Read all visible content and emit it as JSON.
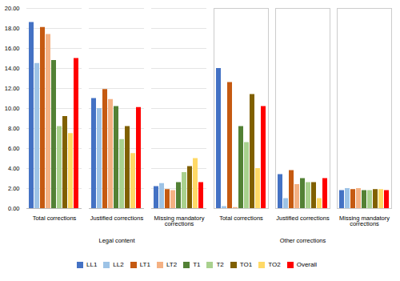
{
  "chart_data": [
    {
      "type": "bar",
      "xlabel": "Legal content",
      "categories": [
        "Total corrections",
        "Justified corrections",
        "Missing mandatory\ncorrections"
      ],
      "series": [
        {
          "name": "LL1",
          "color": "#4472C4",
          "values": [
            18.6,
            11.0,
            2.2
          ]
        },
        {
          "name": "LL2",
          "color": "#9DC3E6",
          "values": [
            14.5,
            10.0,
            2.5
          ]
        },
        {
          "name": "LT1",
          "color": "#C55A11",
          "values": [
            18.1,
            11.9,
            1.9
          ]
        },
        {
          "name": "LT2",
          "color": "#F4B183",
          "values": [
            17.4,
            10.9,
            1.8
          ]
        },
        {
          "name": "T1",
          "color": "#538135",
          "values": [
            14.8,
            10.2,
            2.6
          ]
        },
        {
          "name": "T2",
          "color": "#A9D18E",
          "values": [
            8.2,
            6.9,
            3.6
          ]
        },
        {
          "name": "TO1",
          "color": "#806000",
          "values": [
            9.2,
            8.2,
            4.2
          ]
        },
        {
          "name": "TO2",
          "color": "#FFD966",
          "values": [
            7.5,
            5.5,
            5.0
          ]
        },
        {
          "name": "Overall",
          "color": "#FF0000",
          "values": [
            15.0,
            10.1,
            2.6
          ]
        }
      ],
      "ylim": [
        0,
        20.0
      ],
      "yticks": [
        {
          "value": 0,
          "label": "0.00"
        },
        {
          "value": 2,
          "label": "2.00"
        },
        {
          "value": 4,
          "label": "4.00"
        },
        {
          "value": 6,
          "label": "6.00"
        },
        {
          "value": 8,
          "label": "8.00"
        },
        {
          "value": 10,
          "label": "10.00"
        },
        {
          "value": 12,
          "label": "12.00"
        },
        {
          "value": 14,
          "label": "14.00"
        },
        {
          "value": 16,
          "label": "16.00"
        },
        {
          "value": 18,
          "label": "18.00"
        },
        {
          "value": 20,
          "label": "20.00"
        }
      ],
      "grid": true,
      "legend": "bottom"
    },
    {
      "type": "bar",
      "xlabel": "Other corrections",
      "categories": [
        "Total corrections",
        "Justified corrections",
        "Missing mandatory\ncorrections"
      ],
      "series": [
        {
          "name": "LL1",
          "color": "#4472C4",
          "values": [
            14.0,
            3.4,
            1.8
          ]
        },
        {
          "name": "LL2",
          "color": "#9DC3E6",
          "values": [
            0.2,
            1.0,
            2.0
          ]
        },
        {
          "name": "LT1",
          "color": "#C55A11",
          "values": [
            12.6,
            3.8,
            1.9
          ]
        },
        {
          "name": "LT2",
          "color": "#F4B183",
          "values": [
            0.1,
            2.4,
            2.0
          ]
        },
        {
          "name": "T1",
          "color": "#538135",
          "values": [
            8.2,
            3.0,
            1.8
          ]
        },
        {
          "name": "T2",
          "color": "#A9D18E",
          "values": [
            6.6,
            2.6,
            1.8
          ]
        },
        {
          "name": "TO1",
          "color": "#806000",
          "values": [
            11.4,
            2.6,
            1.9
          ]
        },
        {
          "name": "TO2",
          "color": "#FFD966",
          "values": [
            4.0,
            1.0,
            1.9
          ]
        },
        {
          "name": "Overall",
          "color": "#FF0000",
          "values": [
            10.2,
            3.0,
            1.8
          ]
        }
      ],
      "ylim": [
        0,
        20.0
      ],
      "grid": false,
      "tick_labels": "x"
    }
  ]
}
